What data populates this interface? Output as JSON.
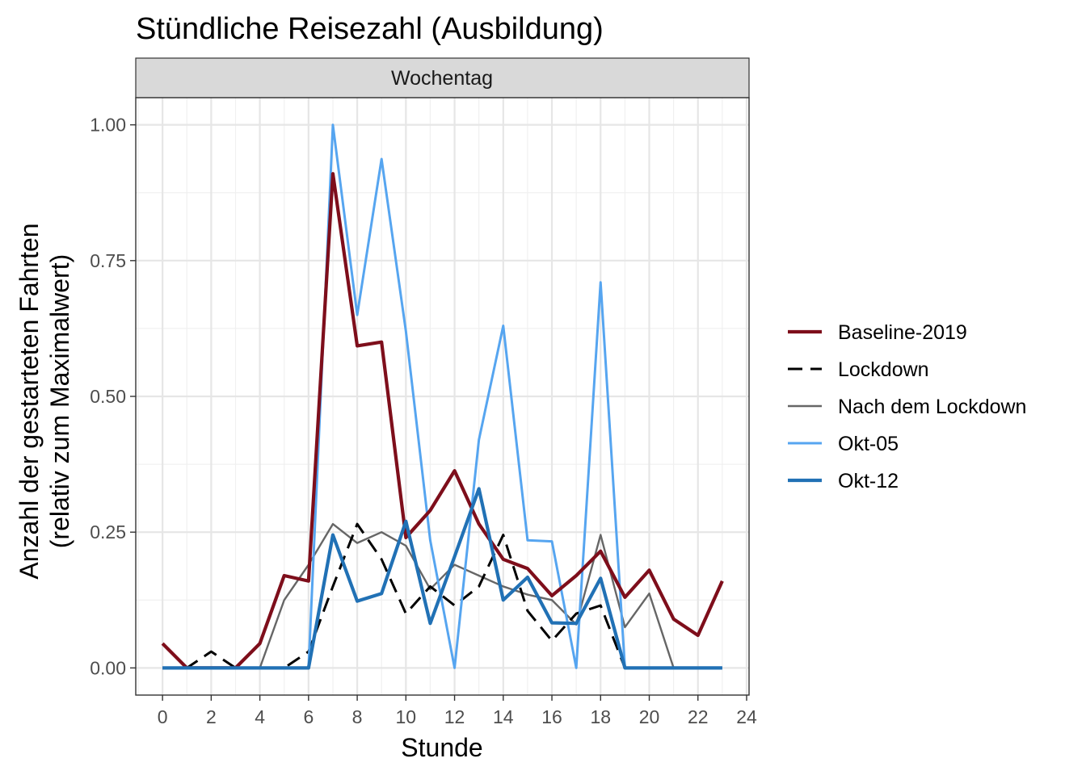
{
  "chart_data": {
    "type": "line",
    "title": "Stündliche Reisezahl (Ausbildung)",
    "facet": "Wochentag",
    "xlabel": "Stunde",
    "ylabel_line1": "Anzahl der gestarteten Fahrten",
    "ylabel_line2": "(relativ zum Maximalwert)",
    "xlim": [
      -1.1,
      24.1
    ],
    "ylim": [
      -0.05,
      1.05
    ],
    "x_ticks": [
      0,
      2,
      4,
      6,
      8,
      10,
      12,
      14,
      16,
      18,
      20,
      22,
      24
    ],
    "x_tick_labels": [
      "0",
      "2",
      "4",
      "6",
      "8",
      "10",
      "12",
      "14",
      "16",
      "18",
      "20",
      "22",
      "24"
    ],
    "y_ticks": [
      0,
      0.25,
      0.5,
      0.75,
      1.0
    ],
    "y_tick_labels": [
      "0.00",
      "0.25",
      "0.50",
      "0.75",
      "1.00"
    ],
    "grid": true,
    "legend_position": "right",
    "x": [
      0,
      1,
      2,
      3,
      4,
      5,
      6,
      7,
      8,
      9,
      10,
      11,
      12,
      13,
      14,
      15,
      16,
      17,
      18,
      19,
      20,
      21,
      22,
      23
    ],
    "series": [
      {
        "name": "Nach dem Lockdown",
        "color": "#666666",
        "style": "solid",
        "weight": "thin",
        "values": [
          0,
          0,
          0,
          0,
          0,
          0.125,
          0.19,
          0.265,
          0.23,
          0.25,
          0.225,
          0.145,
          0.19,
          0.17,
          0.15,
          0.135,
          0.125,
          0.08,
          0.245,
          0.075,
          0.137,
          0,
          0,
          0
        ]
      },
      {
        "name": "Lockdown",
        "color": "#000000",
        "style": "dashed",
        "weight": "medium",
        "values": [
          0,
          0,
          0.03,
          0,
          0,
          0,
          0.03,
          0.15,
          0.265,
          0.2,
          0.1,
          0.15,
          0.115,
          0.15,
          0.245,
          0.105,
          0.05,
          0.1,
          0.115,
          0,
          0,
          0,
          0,
          0
        ]
      },
      {
        "name": "Okt-05",
        "color": "#56A5F0",
        "style": "solid",
        "weight": "medium",
        "values": [
          0,
          0,
          0,
          0,
          0,
          0,
          0,
          1.0,
          0.65,
          0.937,
          0.62,
          0.235,
          0,
          0.42,
          0.63,
          0.235,
          0.233,
          0,
          0.71,
          0,
          0,
          0,
          0,
          0
        ]
      },
      {
        "name": "Baseline-2019",
        "color": "#7E0E1B",
        "style": "solid",
        "weight": "thick",
        "values": [
          0.045,
          0,
          0,
          0,
          0.045,
          0.17,
          0.16,
          0.91,
          0.593,
          0.6,
          0.24,
          0.29,
          0.363,
          0.265,
          0.2,
          0.183,
          0.133,
          0.17,
          0.215,
          0.13,
          0.18,
          0.09,
          0.06,
          0.16
        ]
      },
      {
        "name": "Okt-12",
        "color": "#2171B5",
        "style": "solid",
        "weight": "thick",
        "values": [
          0,
          0,
          0,
          0,
          0,
          0,
          0,
          0.245,
          0.123,
          0.137,
          0.27,
          0.082,
          0.205,
          0.33,
          0.125,
          0.167,
          0.083,
          0.082,
          0.165,
          0,
          0,
          0,
          0,
          0
        ]
      }
    ],
    "legend_order": [
      "Baseline-2019",
      "Lockdown",
      "Nach dem Lockdown",
      "Okt-05",
      "Okt-12"
    ]
  }
}
